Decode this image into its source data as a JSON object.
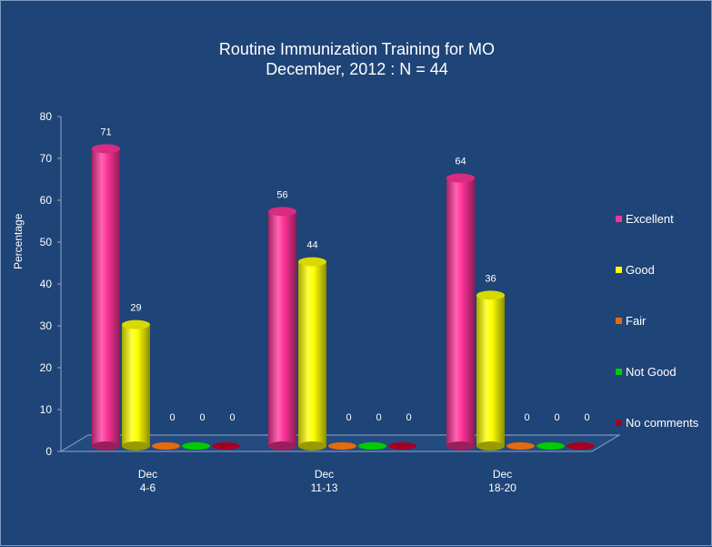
{
  "title": {
    "line1": "Routine Immunization Training for MO",
    "line2": "December, 2012 : N = 44"
  },
  "chart_data": {
    "type": "bar",
    "ylabel": "Percentage",
    "ylim": [
      0,
      80
    ],
    "yticks": [
      "0",
      "10",
      "20",
      "30",
      "40",
      "50",
      "60",
      "70",
      "80"
    ],
    "grid": false,
    "legend_position": "right",
    "categories": [
      {
        "line1": "Dec",
        "line2": "4-6"
      },
      {
        "line1": "Dec",
        "line2": "11-13"
      },
      {
        "line1": "Dec",
        "line2": "18-20"
      }
    ],
    "series": [
      {
        "name": "Excellent",
        "color": "#ff3399",
        "values": [
          71,
          56,
          64
        ]
      },
      {
        "name": "Good",
        "color": "#ffff00",
        "values": [
          29,
          44,
          36
        ]
      },
      {
        "name": "Fair",
        "color": "#e46c0a",
        "values": [
          0,
          0,
          0
        ]
      },
      {
        "name": "Not Good",
        "color": "#00cc00",
        "values": [
          0,
          0,
          0
        ]
      },
      {
        "name": "No comments",
        "color": "#a50021",
        "values": [
          0,
          0,
          0
        ]
      }
    ]
  }
}
